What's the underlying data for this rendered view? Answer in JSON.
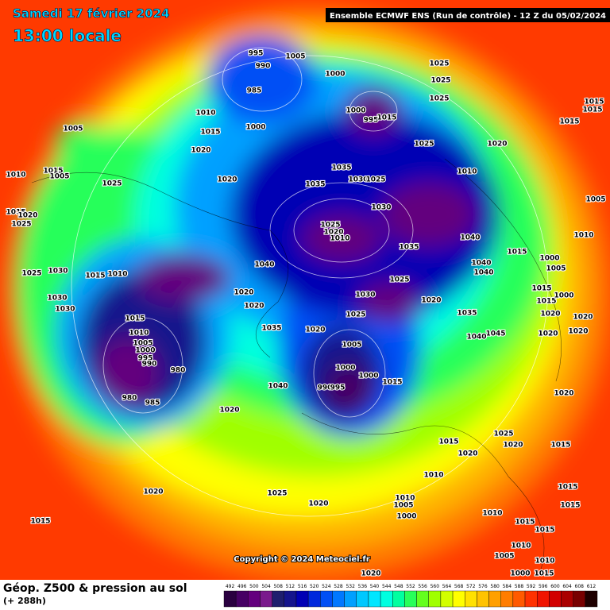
{
  "header": {
    "date": "Samedi 17 février 2024",
    "time": "13:00 locale",
    "model": "Ensemble ECMWF ENS  (Run de contrôle)  -  12 Z du 05/02/2024"
  },
  "map": {
    "copyright": "Copyright © 2024 Meteociel.fr",
    "pressure_labels": [
      995,
      990,
      1005,
      985,
      1000,
      1000,
      995,
      1015,
      1025,
      1025,
      1025,
      1015,
      1015,
      1015,
      1005,
      1010,
      1015,
      1000,
      1020,
      1025,
      1020,
      1010,
      1015,
      1005,
      1025,
      1020,
      1035,
      1035,
      1030,
      1025,
      1010,
      1015,
      1020,
      1025,
      1005,
      1025,
      1020,
      1010,
      1030,
      1040,
      1035,
      1015,
      1025,
      1030,
      1015,
      1010,
      1040,
      1040,
      1040,
      1000,
      1005,
      1010,
      1025,
      1030,
      1020,
      1035,
      1030,
      1030,
      1020,
      1020,
      1025,
      1015,
      1010,
      1020,
      1035,
      1005,
      1000,
      995,
      990,
      980,
      1005,
      1000,
      1000,
      990,
      995,
      1015,
      1040,
      980,
      985,
      1020,
      1025,
      1020,
      1015,
      1020,
      1010,
      1020,
      1025,
      1020,
      1015,
      1010,
      1005,
      1000,
      1010,
      1015,
      1015,
      1005,
      1010,
      1015,
      1000,
      1010,
      1015,
      1020,
      1015,
      1015,
      1020,
      1020,
      1045,
      1040,
      1020,
      1020,
      1015,
      1015,
      1000,
      1020
    ]
  },
  "footer": {
    "title": "Géop. Z500 & pression au sol",
    "lead": "(+ 288h)"
  },
  "legend": {
    "values": [
      492,
      496,
      500,
      504,
      508,
      512,
      516,
      520,
      524,
      528,
      532,
      536,
      540,
      544,
      548,
      552,
      556,
      560,
      564,
      568,
      572,
      576,
      580,
      584,
      588,
      592,
      596,
      600,
      604,
      608,
      612
    ],
    "colors": [
      "#2a0040",
      "#460064",
      "#64007e",
      "#7a1a8c",
      "#1e1e6e",
      "#14148c",
      "#0000b4",
      "#0028dc",
      "#0050f5",
      "#0078ff",
      "#00a0ff",
      "#00c8ff",
      "#00e6ff",
      "#00ffe0",
      "#00ffa0",
      "#28ff5a",
      "#64ff1e",
      "#a0ff00",
      "#d2ff00",
      "#ffff00",
      "#ffe100",
      "#ffc300",
      "#ffa000",
      "#ff7d00",
      "#ff5a00",
      "#ff3200",
      "#f01400",
      "#d20000",
      "#aa0000",
      "#780000",
      "#1e0000"
    ]
  }
}
